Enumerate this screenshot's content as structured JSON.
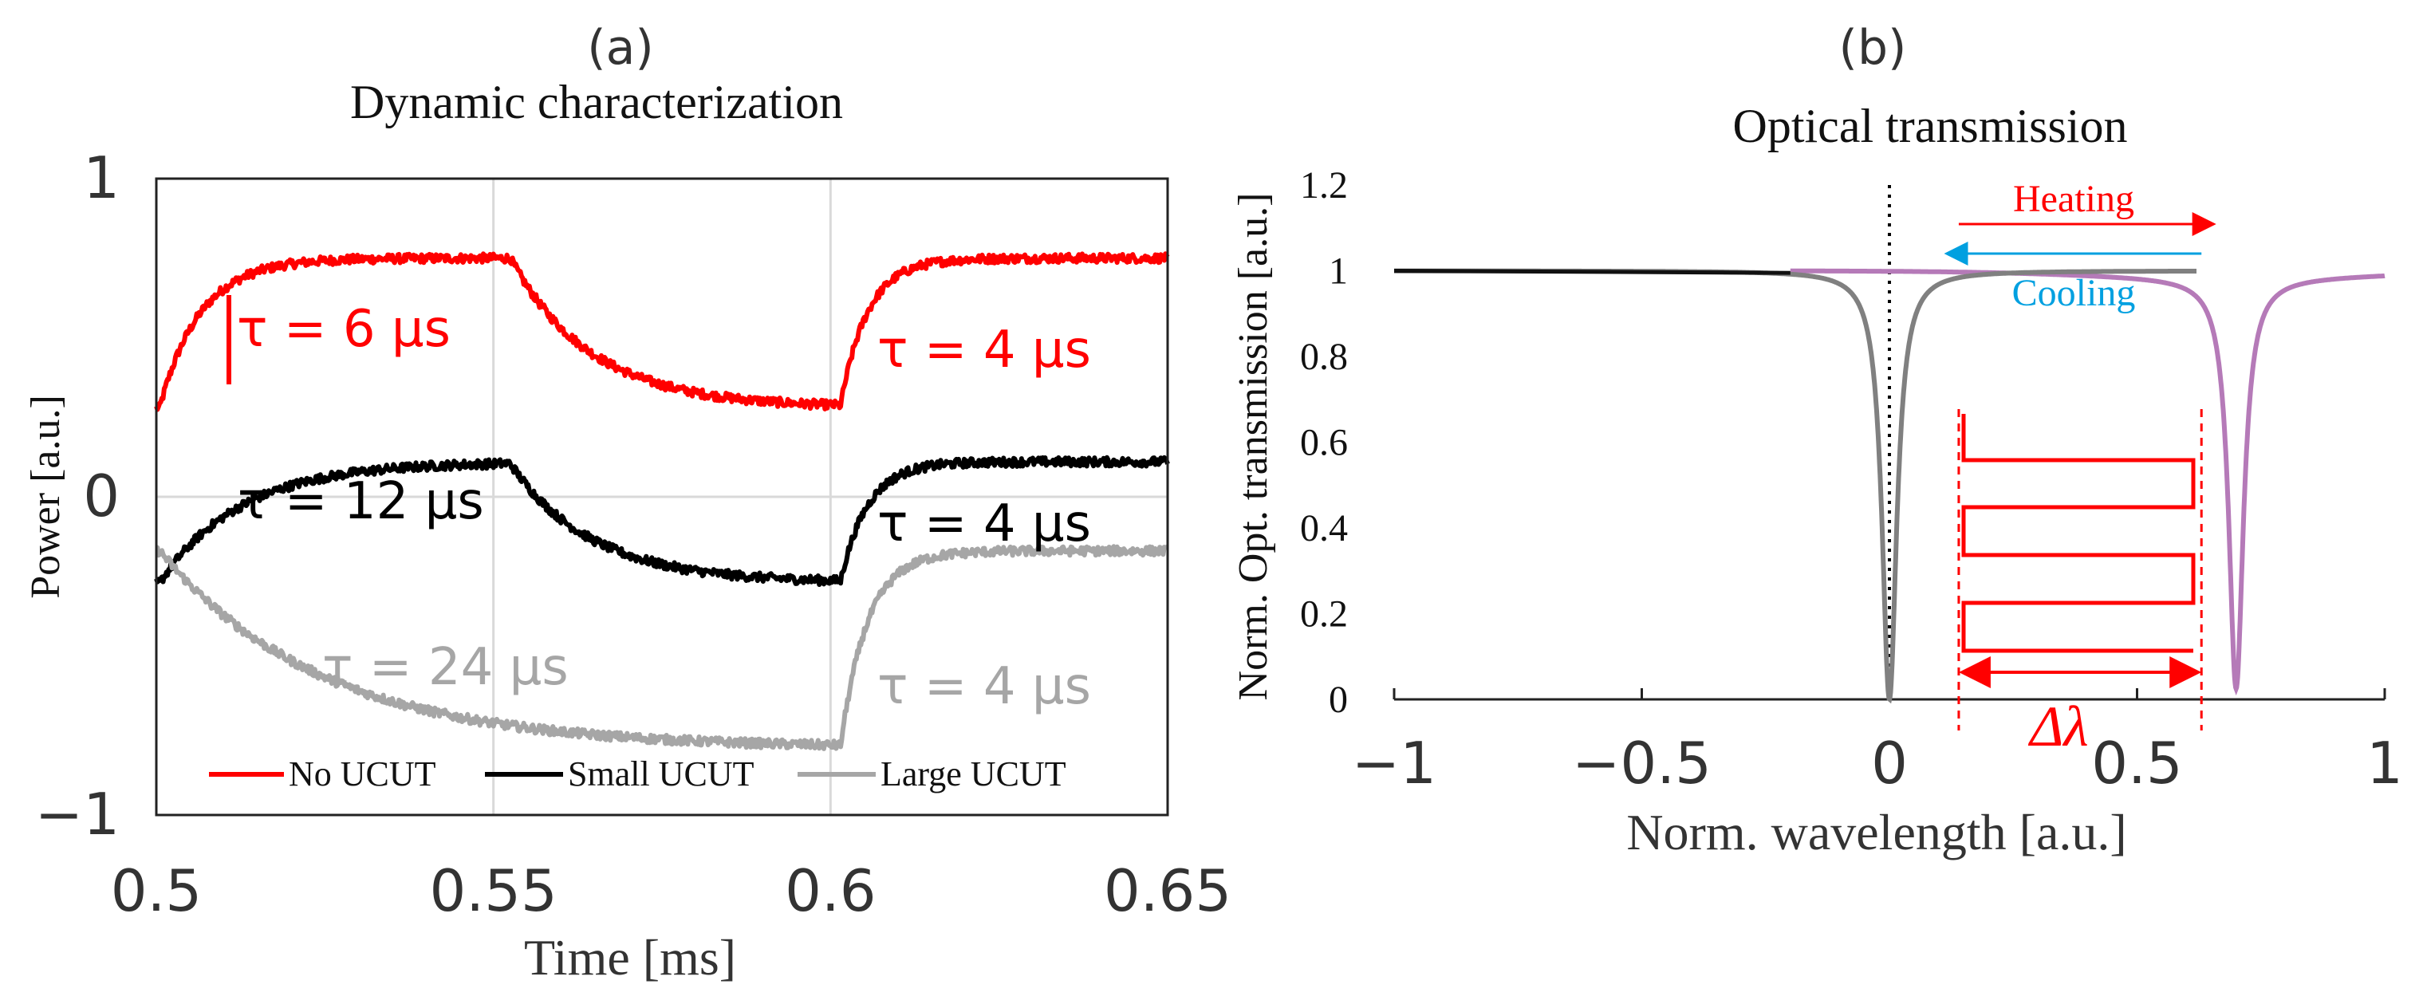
{
  "panels": {
    "a": {
      "panel_label": "(a)",
      "title": "Dynamic characterization",
      "xlabel": "Time [ms]",
      "ylabel": "Power [a.u.]"
    },
    "b": {
      "panel_label": "(b)",
      "title": "Optical transmission",
      "xlabel": "Norm. wavelength [a.u.]",
      "ylabel": "Norm. Opt. transmission [a.u.]",
      "heating_label": "Heating",
      "cooling_label": "Cooling",
      "delta_label": "Δλ"
    }
  },
  "colors": {
    "no_ucut": "#ff0000",
    "small_ucut": "#000000",
    "large_ucut": "#a6a6a6",
    "grid": "#d9d9d9",
    "resonance_cold": "#808080",
    "resonance_hot": "#b57ab8",
    "heating_arrow": "#ff0000",
    "cooling_arrow": "#00a0e0",
    "heater": "#ff0000"
  },
  "chart_data": [
    {
      "id": "a",
      "type": "line",
      "title": "Dynamic characterization",
      "xlabel": "Time [ms]",
      "ylabel": "Power [a.u.]",
      "xlim": [
        0.5,
        0.65
      ],
      "ylim": [
        -1,
        1
      ],
      "xticks": [
        0.5,
        0.55,
        0.6,
        0.65
      ],
      "xtick_labels": [
        "0.5",
        "0.55",
        "0.6",
        "0.65"
      ],
      "yticks": [
        -1,
        0,
        1
      ],
      "ytick_labels": [
        "−1",
        "0",
        "1"
      ],
      "grid": true,
      "legend_position": "bottom",
      "series": [
        {
          "name": "No UCUT",
          "color_key": "no_ucut",
          "low": 0.28,
          "high": 0.75,
          "tau_rise_us": 6,
          "tau_fall_us": 12,
          "tau_rerise_us": 4,
          "annotations": [
            "τ = 6 µs",
            "τ = 4 µs"
          ]
        },
        {
          "name": "Small UCUT",
          "color_key": "small_ucut",
          "low": -0.27,
          "high": 0.11,
          "tau_rise_us": 12,
          "tau_fall_us": 12,
          "tau_rerise_us": 4,
          "annotations": [
            "τ = 12 µs",
            "τ = 4 µs"
          ]
        },
        {
          "name": "Large UCUT",
          "color_key": "large_ucut",
          "low": -0.79,
          "high": -0.17,
          "tau_rise_us": 24,
          "tau_fall_us": 24,
          "tau_rerise_us": 4,
          "annotations": [
            "τ = 24 µs",
            "τ = 4 µs"
          ]
        }
      ],
      "switch_times_ms": [
        0.5005,
        0.5525,
        0.6015
      ]
    },
    {
      "id": "b",
      "type": "line",
      "title": "Optical transmission",
      "xlabel": "Norm. wavelength [a.u.]",
      "ylabel": "Norm. Opt. transmission [a.u.]",
      "xlim": [
        -1,
        1
      ],
      "ylim": [
        0,
        1.2
      ],
      "xticks": [
        -1,
        -0.5,
        0,
        0.5,
        1
      ],
      "xtick_labels": [
        "−1",
        "−0.5",
        "0",
        "0.5",
        "1"
      ],
      "yticks": [
        0,
        0.2,
        0.4,
        0.6,
        0.8,
        1,
        1.2
      ],
      "ytick_labels": [
        "0",
        "0.2",
        "0.4",
        "0.6",
        "0.8",
        "1",
        "1.2"
      ],
      "grid": false,
      "series": [
        {
          "name": "cold resonance",
          "color_key": "resonance_cold",
          "center": 0.0,
          "min": 0.0
        },
        {
          "name": "hot resonance",
          "color_key": "resonance_hot",
          "center": 0.7,
          "min": 0.04
        }
      ],
      "vertical_line_x": 0.0,
      "heating_arrow_x": [
        0.14,
        0.65
      ],
      "cooling_arrow_x": [
        0.63,
        0.12
      ],
      "arrow_y": 1.0,
      "delta_lambda_x": [
        0.14,
        0.63
      ]
    }
  ]
}
